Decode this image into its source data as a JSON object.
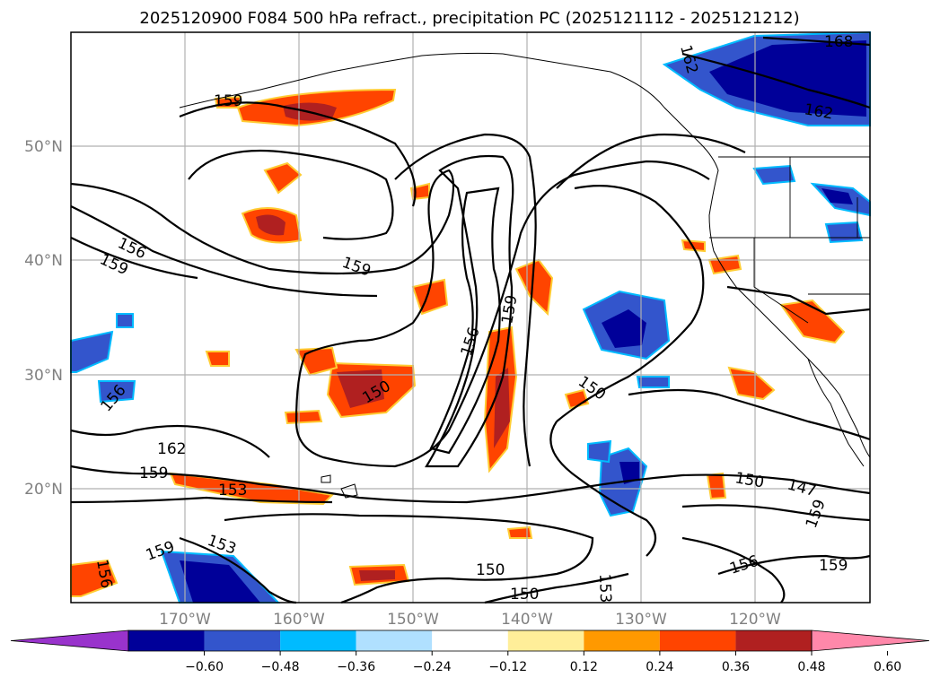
{
  "title": "2025120900 F084 500 hPa refract., precipitation PC (2025121112 - 2025121212)",
  "lat_labels": [
    "50°N",
    "40°N",
    "30°N",
    "20°N"
  ],
  "lon_labels": [
    "170°W",
    "160°W",
    "150°W",
    "140°W",
    "130°W",
    "120°W"
  ],
  "contour_labels": [
    "156",
    "159",
    "159",
    "156",
    "162",
    "159",
    "153",
    "153",
    "159",
    "156",
    "150",
    "156",
    "159",
    "150",
    "150",
    "150",
    "153",
    "150",
    "147",
    "159",
    "156",
    "159",
    "159",
    "162",
    "168",
    "162"
  ],
  "colorbar": {
    "ticks": [
      "−0.60",
      "−0.48",
      "−0.36",
      "−0.24",
      "−0.12",
      "0.12",
      "0.24",
      "0.36",
      "0.48",
      "0.60"
    ],
    "colors": [
      "#9933cc",
      "#000099",
      "#3355cc",
      "#00bbff",
      "#b0e0ff",
      "#ffffff",
      "#ffee99",
      "#ff9900",
      "#ff4400",
      "#b02020",
      "#ff88aa"
    ]
  }
}
